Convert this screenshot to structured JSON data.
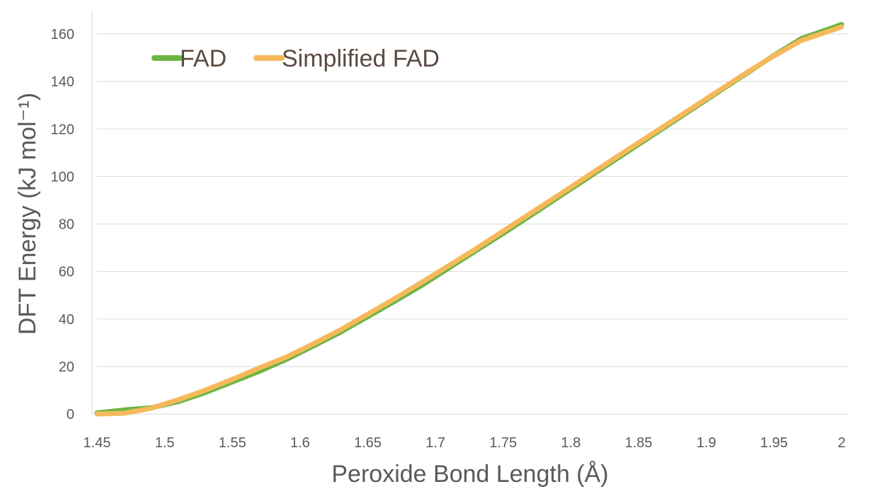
{
  "chart_data": {
    "type": "line",
    "title": "",
    "xlabel": "Peroxide Bond Length (Å)",
    "ylabel": "DFT Energy (kJ mol⁻¹)",
    "xlim": [
      1.45,
      2.0
    ],
    "ylim": [
      0,
      165
    ],
    "x_ticks": [
      "1.45",
      "1.5",
      "1.55",
      "1.6",
      "1.65",
      "1.7",
      "1.75",
      "1.8",
      "1.85",
      "1.9",
      "1.95",
      "2"
    ],
    "y_ticks": [
      "0",
      "20",
      "40",
      "60",
      "80",
      "100",
      "120",
      "140",
      "160"
    ],
    "grid": "horizontal",
    "legend_position": "top-left",
    "series": [
      {
        "name": "FAD",
        "color": "#6cb543",
        "x": [
          1.45,
          1.47,
          1.49,
          1.51,
          1.53,
          1.55,
          1.57,
          1.59,
          1.61,
          1.63,
          1.65,
          1.67,
          1.69,
          1.71,
          1.73,
          1.75,
          1.77,
          1.79,
          1.81,
          1.83,
          1.85,
          1.87,
          1.89,
          1.91,
          1.93,
          1.95,
          1.97,
          2.0
        ],
        "y": [
          0.5,
          1.7,
          2.6,
          5.2,
          9.0,
          13.5,
          18.0,
          23.0,
          28.7,
          34.5,
          41.0,
          47.5,
          54.2,
          61.5,
          68.8,
          76.0,
          83.5,
          91.0,
          98.5,
          106.0,
          113.5,
          121.0,
          128.5,
          136.0,
          143.5,
          151.0,
          158.0,
          164.0
        ]
      },
      {
        "name": "Simplified FAD",
        "color": "#f5b95c",
        "x": [
          1.45,
          1.47,
          1.49,
          1.51,
          1.53,
          1.55,
          1.57,
          1.59,
          1.61,
          1.63,
          1.65,
          1.67,
          1.69,
          1.71,
          1.73,
          1.75,
          1.77,
          1.79,
          1.81,
          1.83,
          1.85,
          1.87,
          1.89,
          1.91,
          1.93,
          1.95,
          1.97,
          2.0
        ],
        "y": [
          0.0,
          0.3,
          2.4,
          6.0,
          10.0,
          14.6,
          19.4,
          24.0,
          29.6,
          35.5,
          42.0,
          48.6,
          55.5,
          62.5,
          69.6,
          77.0,
          84.4,
          91.8,
          99.3,
          106.8,
          114.2,
          121.6,
          129.0,
          136.4,
          143.8,
          150.8,
          157.2,
          163.0
        ]
      }
    ]
  }
}
